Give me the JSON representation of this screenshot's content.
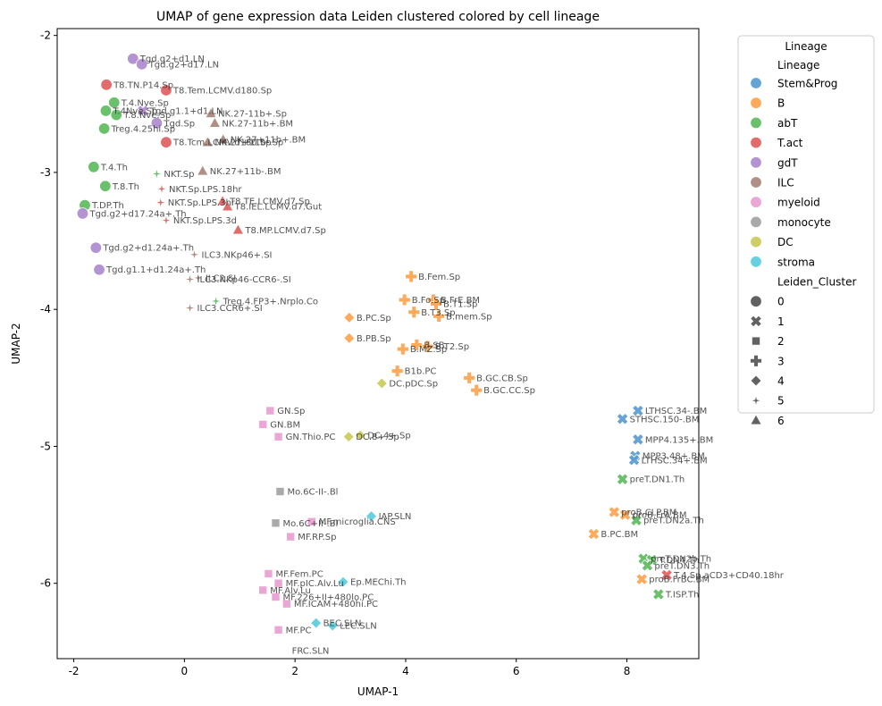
{
  "chart_data": {
    "type": "scatter",
    "title": "UMAP of gene expression data Leiden clustered colored by cell lineage",
    "xlabel": "UMAP-1",
    "ylabel": "UMAP-2",
    "xlim": [
      -2.3,
      9.3
    ],
    "ylim": [
      -6.55,
      -1.95
    ],
    "xticks": [
      "-2",
      "0",
      "2",
      "4",
      "6",
      "8"
    ],
    "yticks": [
      "-2",
      "-3",
      "-4",
      "-5",
      "-6"
    ],
    "grid": false,
    "legend": {
      "title": "Lineage",
      "placement": "outside-top-right",
      "hue_title": "Lineage",
      "hue": [
        {
          "name": "Stem&Prog",
          "color": "#5A9BD0"
        },
        {
          "name": "B",
          "color": "#FFA34D"
        },
        {
          "name": "abT",
          "color": "#5DBB5E"
        },
        {
          "name": "T.act",
          "color": "#E06060"
        },
        {
          "name": "gdT",
          "color": "#AE8ACE"
        },
        {
          "name": "ILC",
          "color": "#A9857A"
        },
        {
          "name": "myeloid",
          "color": "#E89ED0"
        },
        {
          "name": "monocyte",
          "color": "#A3A3A3"
        },
        {
          "name": "DC",
          "color": "#CBCB5A"
        },
        {
          "name": "stroma",
          "color": "#5ACDDC"
        }
      ],
      "style_title": "Leiden_Cluster",
      "styles": [
        {
          "name": "0",
          "marker": "circle"
        },
        {
          "name": "1",
          "marker": "x"
        },
        {
          "name": "2",
          "marker": "square"
        },
        {
          "name": "3",
          "marker": "plus"
        },
        {
          "name": "4",
          "marker": "diamond"
        },
        {
          "name": "5",
          "marker": "star"
        },
        {
          "name": "6",
          "marker": "triangle"
        }
      ]
    },
    "points": [
      {
        "label": "Tgd.g2+d1.LN",
        "x": -0.93,
        "y": -2.17,
        "lineage": "gdT",
        "cluster": "0"
      },
      {
        "label": "Tgd.g2+d17.LN",
        "x": -0.77,
        "y": -2.21,
        "lineage": "gdT",
        "cluster": "0"
      },
      {
        "label": "T8.TN.P14.Sp",
        "x": -1.41,
        "y": -2.36,
        "lineage": "T.act",
        "cluster": "0"
      },
      {
        "label": "T8.Tem.LCMV.d180.Sp",
        "x": -0.33,
        "y": -2.4,
        "lineage": "T.act",
        "cluster": "0"
      },
      {
        "label": "T.4.Nve.Sp",
        "x": -1.27,
        "y": -2.49,
        "lineage": "abT",
        "cluster": "0"
      },
      {
        "label": "T.4Nve.Sp",
        "x": -1.42,
        "y": -2.55,
        "lineage": "abT",
        "cluster": "0"
      },
      {
        "label": "T.8.Nve.Sp",
        "x": -1.23,
        "y": -2.58,
        "lineage": "abT",
        "cluster": "0"
      },
      {
        "label": "Tgd.g1.1+d1.LN",
        "x": -0.75,
        "y": -2.55,
        "lineage": "gdT",
        "cluster": "1"
      },
      {
        "label": "Tgd.Sp",
        "x": -0.5,
        "y": -2.64,
        "lineage": "gdT",
        "cluster": "0"
      },
      {
        "label": "NK.27-11b+.Sp",
        "x": 0.48,
        "y": -2.57,
        "lineage": "ILC",
        "cluster": "6"
      },
      {
        "label": "NK.27-11b+.BM",
        "x": 0.55,
        "y": -2.64,
        "lineage": "ILC",
        "cluster": "6"
      },
      {
        "label": "Treg.4.25hi.Sp",
        "x": -1.45,
        "y": -2.68,
        "lineage": "abT",
        "cluster": "0"
      },
      {
        "label": "T8.Tcm.LCMV.d180.Sp",
        "x": -0.33,
        "y": -2.78,
        "lineage": "T.act",
        "cluster": "0"
      },
      {
        "label": "NK.27+11b+.BM",
        "x": 0.7,
        "y": -2.76,
        "lineage": "ILC",
        "cluster": "6"
      },
      {
        "label": "NK.27+11b-.Sp",
        "x": 0.42,
        "y": -2.78,
        "lineage": "ILC",
        "cluster": "6"
      },
      {
        "label": "T.4.Th",
        "x": -1.64,
        "y": -2.96,
        "lineage": "abT",
        "cluster": "0"
      },
      {
        "label": "NKT.Sp",
        "x": -0.5,
        "y": -3.01,
        "lineage": "abT",
        "cluster": "5"
      },
      {
        "label": "NK.27+11b-.BM",
        "x": 0.33,
        "y": -2.99,
        "lineage": "ILC",
        "cluster": "6"
      },
      {
        "label": "T.8.Th",
        "x": -1.43,
        "y": -3.1,
        "lineage": "abT",
        "cluster": "0"
      },
      {
        "label": "NKT.Sp.LPS.18hr",
        "x": -0.41,
        "y": -3.12,
        "lineage": "T.act",
        "cluster": "5"
      },
      {
        "label": "T.DP.Th",
        "x": -1.8,
        "y": -3.24,
        "lineage": "abT",
        "cluster": "0"
      },
      {
        "label": "NKT.Sp.LPS.3hr",
        "x": -0.43,
        "y": -3.22,
        "lineage": "T.act",
        "cluster": "5"
      },
      {
        "label": "T8.TE.LCMV.d7.Sp",
        "x": 0.69,
        "y": -3.21,
        "lineage": "T.act",
        "cluster": "6"
      },
      {
        "label": "T8.IEL.LCMV.d7.Gut",
        "x": 0.78,
        "y": -3.25,
        "lineage": "T.act",
        "cluster": "6"
      },
      {
        "label": "Tgd.g2+d17.24a+.Th",
        "x": -1.84,
        "y": -3.3,
        "lineage": "gdT",
        "cluster": "0"
      },
      {
        "label": "NKT.Sp.LPS.3d",
        "x": -0.33,
        "y": -3.35,
        "lineage": "T.act",
        "cluster": "5"
      },
      {
        "label": "T8.MP.LCMV.d7.Sp",
        "x": 0.97,
        "y": -3.42,
        "lineage": "T.act",
        "cluster": "6"
      },
      {
        "label": "Tgd.g2+d1.24a+.Th",
        "x": -1.6,
        "y": -3.55,
        "lineage": "gdT",
        "cluster": "0"
      },
      {
        "label": "ILC3.NKp46+.SI",
        "x": 0.18,
        "y": -3.6,
        "lineage": "ILC",
        "cluster": "5"
      },
      {
        "label": "Tgd.g1.1+d1.24a+.Th",
        "x": -1.54,
        "y": -3.71,
        "lineage": "gdT",
        "cluster": "0"
      },
      {
        "label": "ILC3.NKp46-CCR6-.SI",
        "x": 0.1,
        "y": -3.78,
        "lineage": "ILC",
        "cluster": "5"
      },
      {
        "label": "ILC2.SI",
        "x": 0.25,
        "y": -3.77,
        "lineage": "ILC",
        "cluster": "5"
      },
      {
        "label": "Treg.4.FP3+.Nrplo.Co",
        "x": 0.57,
        "y": -3.94,
        "lineage": "abT",
        "cluster": "5"
      },
      {
        "label": "ILC3.CCR6+.SI",
        "x": 0.1,
        "y": -3.99,
        "lineage": "ILC",
        "cluster": "5"
      },
      {
        "label": "B.Fem.Sp",
        "x": 4.1,
        "y": -3.76,
        "lineage": "B",
        "cluster": "3"
      },
      {
        "label": "B.Fo.Sp",
        "x": 3.98,
        "y": -3.93,
        "lineage": "B",
        "cluster": "3"
      },
      {
        "label": "B.FrE.BM",
        "x": 4.5,
        "y": -3.93,
        "lineage": "B",
        "cluster": "3"
      },
      {
        "label": "B.T1.Sp",
        "x": 4.55,
        "y": -3.96,
        "lineage": "B",
        "cluster": "3"
      },
      {
        "label": "B.T3.Sp",
        "x": 4.15,
        "y": -4.02,
        "lineage": "B",
        "cluster": "3"
      },
      {
        "label": "B.mem.Sp",
        "x": 4.6,
        "y": -4.05,
        "lineage": "B",
        "cluster": "3"
      },
      {
        "label": "B.PC.Sp",
        "x": 2.98,
        "y": -4.06,
        "lineage": "B",
        "cluster": "4"
      },
      {
        "label": "B.PB.Sp",
        "x": 2.98,
        "y": -4.21,
        "lineage": "B",
        "cluster": "4"
      },
      {
        "label": "B.SB",
        "x": 4.2,
        "y": -4.26,
        "lineage": "B",
        "cluster": "3"
      },
      {
        "label": "B.T2.Sp",
        "x": 4.4,
        "y": -4.27,
        "lineage": "B",
        "cluster": "3"
      },
      {
        "label": "B.MZ.Sp",
        "x": 3.95,
        "y": -4.29,
        "lineage": "B",
        "cluster": "3"
      },
      {
        "label": "B1b.PC",
        "x": 3.85,
        "y": -4.45,
        "lineage": "B",
        "cluster": "3"
      },
      {
        "label": "B.GC.CB.Sp",
        "x": 5.15,
        "y": -4.5,
        "lineage": "B",
        "cluster": "3"
      },
      {
        "label": "B.GC.CC.Sp",
        "x": 5.28,
        "y": -4.59,
        "lineage": "B",
        "cluster": "3"
      },
      {
        "label": "DC.pDC.Sp",
        "x": 3.57,
        "y": -4.54,
        "lineage": "DC",
        "cluster": "4"
      },
      {
        "label": "GN.Sp",
        "x": 1.55,
        "y": -4.74,
        "lineage": "myeloid",
        "cluster": "2"
      },
      {
        "label": "GN.BM",
        "x": 1.42,
        "y": -4.84,
        "lineage": "myeloid",
        "cluster": "2"
      },
      {
        "label": "GN.Thio.PC",
        "x": 1.7,
        "y": -4.93,
        "lineage": "myeloid",
        "cluster": "2"
      },
      {
        "label": "DC.8+.Sp",
        "x": 2.97,
        "y": -4.93,
        "lineage": "DC",
        "cluster": "4"
      },
      {
        "label": "DC.4+.Sp",
        "x": 3.18,
        "y": -4.92,
        "lineage": "DC",
        "cluster": "4"
      },
      {
        "label": "Mo.6C-II-.Bl",
        "x": 1.73,
        "y": -5.33,
        "lineage": "monocyte",
        "cluster": "2"
      },
      {
        "label": "MF.microglia.CNS",
        "x": 2.3,
        "y": -5.55,
        "lineage": "myeloid",
        "cluster": "2"
      },
      {
        "label": "IAP.SLN",
        "x": 3.38,
        "y": -5.51,
        "lineage": "stroma",
        "cluster": "4"
      },
      {
        "label": "Mo.6C+II-.Bl",
        "x": 1.65,
        "y": -5.56,
        "lineage": "monocyte",
        "cluster": "2"
      },
      {
        "label": "MF.RP.Sp",
        "x": 1.92,
        "y": -5.66,
        "lineage": "myeloid",
        "cluster": "2"
      },
      {
        "label": "MF.Fem.PC",
        "x": 1.52,
        "y": -5.93,
        "lineage": "myeloid",
        "cluster": "2"
      },
      {
        "label": "MF.pIC.Alv.Lu",
        "x": 1.7,
        "y": -6.0,
        "lineage": "myeloid",
        "cluster": "2"
      },
      {
        "label": "Ep.MEChi.Th",
        "x": 2.87,
        "y": -5.99,
        "lineage": "stroma",
        "cluster": "4"
      },
      {
        "label": "MF.Alv.Lu",
        "x": 1.42,
        "y": -6.05,
        "lineage": "myeloid",
        "cluster": "2"
      },
      {
        "label": "MF.226+II+480lo.PC",
        "x": 1.65,
        "y": -6.1,
        "lineage": "myeloid",
        "cluster": "2"
      },
      {
        "label": "MF.ICAM+480hi.PC",
        "x": 1.85,
        "y": -6.15,
        "lineage": "myeloid",
        "cluster": "2"
      },
      {
        "label": "BEC.SLN",
        "x": 2.38,
        "y": -6.29,
        "lineage": "stroma",
        "cluster": "4"
      },
      {
        "label": "LEC.SLN",
        "x": 2.68,
        "y": -6.31,
        "lineage": "stroma",
        "cluster": "4"
      },
      {
        "label": "MF.PC",
        "x": 1.7,
        "y": -6.34,
        "lineage": "myeloid",
        "cluster": "2"
      },
      {
        "label": "FRC.SLN",
        "x": 2.28,
        "y": -6.49,
        "lineage": "stroma",
        "cluster": null
      },
      {
        "label": "LTHSC.34-.BM",
        "x": 8.2,
        "y": -4.74,
        "lineage": "Stem&Prog",
        "cluster": "1"
      },
      {
        "label": "STHSC.150-.BM",
        "x": 7.92,
        "y": -4.8,
        "lineage": "Stem&Prog",
        "cluster": "1"
      },
      {
        "label": "MPP4.135+.BM",
        "x": 8.2,
        "y": -4.95,
        "lineage": "Stem&Prog",
        "cluster": "1"
      },
      {
        "label": "MPP3.48+.BM",
        "x": 8.15,
        "y": -5.07,
        "lineage": "Stem&Prog",
        "cluster": "1"
      },
      {
        "label": "LTHSC.34+.BM",
        "x": 8.13,
        "y": -5.1,
        "lineage": "Stem&Prog",
        "cluster": "1"
      },
      {
        "label": "preT.DN1.Th",
        "x": 7.92,
        "y": -5.24,
        "lineage": "abT",
        "cluster": "1"
      },
      {
        "label": "proB.CLP.BM",
        "x": 7.77,
        "y": -5.48,
        "lineage": "B",
        "cluster": "1"
      },
      {
        "label": "proB.FrA.BM",
        "x": 7.97,
        "y": -5.5,
        "lineage": "B",
        "cluster": "1"
      },
      {
        "label": "preT.DN2a.Th",
        "x": 8.17,
        "y": -5.54,
        "lineage": "abT",
        "cluster": "1"
      },
      {
        "label": "B.PC.BM",
        "x": 7.4,
        "y": -5.64,
        "lineage": "B",
        "cluster": "1"
      },
      {
        "label": "preT.DN2b.Th",
        "x": 8.3,
        "y": -5.82,
        "lineage": "abT",
        "cluster": "1"
      },
      {
        "label": "T.DN4.Th",
        "x": 8.45,
        "y": -5.83,
        "lineage": "abT",
        "cluster": "1"
      },
      {
        "label": "preT.DN3.Th",
        "x": 8.37,
        "y": -5.87,
        "lineage": "abT",
        "cluster": "1"
      },
      {
        "label": "T.4.Sp.aCD3+CD40.18hr",
        "x": 8.72,
        "y": -5.94,
        "lineage": "T.act",
        "cluster": "1"
      },
      {
        "label": "proB.FrBC.BM",
        "x": 8.27,
        "y": -5.97,
        "lineage": "B",
        "cluster": "1"
      },
      {
        "label": "T.ISP.Th",
        "x": 8.57,
        "y": -6.08,
        "lineage": "abT",
        "cluster": "1"
      }
    ]
  }
}
